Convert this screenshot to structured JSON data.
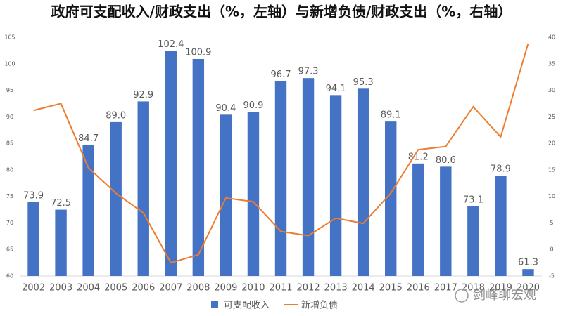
{
  "chart_data": {
    "type": "bar_line",
    "title": "政府可支配收入/财政支出（%，左轴）与新增负债/财政支出（%，右轴）",
    "categories": [
      "2002",
      "2003",
      "2004",
      "2005",
      "2006",
      "2007",
      "2008",
      "2009",
      "2010",
      "2011",
      "2012",
      "2013",
      "2014",
      "2015",
      "2016",
      "2017",
      "2018",
      "2019",
      "2020"
    ],
    "series": [
      {
        "name": "可支配收入",
        "type": "bar",
        "color": "#4472c4",
        "values": [
          73.9,
          72.5,
          84.7,
          89.0,
          92.9,
          102.4,
          100.9,
          90.4,
          90.9,
          96.7,
          97.3,
          94.1,
          95.3,
          89.1,
          81.2,
          80.6,
          73.1,
          78.9,
          61.3
        ],
        "value_labels": [
          "73.9",
          "72.5",
          "84.7",
          "89.0",
          "92.9",
          "102.4",
          "100.9",
          "90.4",
          "90.9",
          "96.7",
          "97.3",
          "94.1",
          "95.3",
          "89.1",
          "81.2",
          "80.6",
          "73.1",
          "78.9",
          "61.3"
        ]
      },
      {
        "name": "新增负债",
        "type": "line",
        "axis": "y2",
        "color": "#ed7d31",
        "values": [
          26.2,
          27.5,
          15.4,
          10.6,
          6.9,
          -2.5,
          -1.0,
          9.7,
          9.0,
          3.4,
          2.6,
          5.9,
          4.9,
          10.6,
          18.8,
          19.4,
          26.9,
          21.2,
          38.8
        ]
      }
    ],
    "ylim": [
      60,
      105
    ],
    "yticks": [
      60,
      65,
      70,
      75,
      80,
      85,
      90,
      95,
      100,
      105
    ],
    "y2lim": [
      -5,
      40
    ],
    "y2ticks": [
      -5,
      0,
      5,
      10,
      15,
      20,
      25,
      30,
      35,
      40
    ],
    "legend": "bottom",
    "watermark": "剑峰聊宏观"
  }
}
